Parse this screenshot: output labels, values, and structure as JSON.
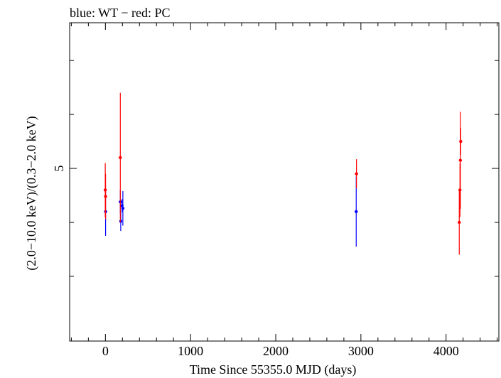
{
  "chart_data": {
    "type": "scatter",
    "title": "blue: WT − red: PC",
    "xlabel": "Time Since 55355.0 MJD (days)",
    "ylabel": "(2.0−10.0 keV)/(0.3−2.0 keV)",
    "xlim": [
      -420,
      4620
    ],
    "ylim": [
      1.8,
      7.7
    ],
    "x_ticks": [
      0,
      1000,
      2000,
      3000,
      4000
    ],
    "y_ticks_labeled": [
      5
    ],
    "y_ticks_minor": [
      3,
      4,
      5,
      6,
      7
    ],
    "grid": false,
    "series": [
      {
        "name": "WT",
        "color": "#0000ff",
        "points": [
          {
            "x": 2,
            "y": 4.2,
            "err": 0.45
          },
          {
            "x": 175,
            "y": 4.38,
            "err": 0.22
          },
          {
            "x": 180,
            "y": 4.02,
            "err": 0.18
          },
          {
            "x": 195,
            "y": 4.31,
            "err": 0.12
          },
          {
            "x": 205,
            "y": 4.26,
            "err": 0.32
          },
          {
            "x": 2945,
            "y": 4.2,
            "err": 0.65
          }
        ]
      },
      {
        "name": "PC",
        "color": "#ff0000",
        "points": [
          {
            "x": -2,
            "y": 4.6,
            "err": 0.5
          },
          {
            "x": 2,
            "y": 4.48,
            "err": 0.42
          },
          {
            "x": 175,
            "y": 5.2,
            "err": 1.2
          },
          {
            "x": 2948,
            "y": 4.9,
            "err": 0.27
          },
          {
            "x": 4155,
            "y": 4.0,
            "err": 0.6
          },
          {
            "x": 4163,
            "y": 4.6,
            "err": 0.5
          },
          {
            "x": 4168,
            "y": 5.15,
            "err": 0.9
          },
          {
            "x": 4172,
            "y": 5.5,
            "err": 0.25
          }
        ]
      }
    ]
  }
}
